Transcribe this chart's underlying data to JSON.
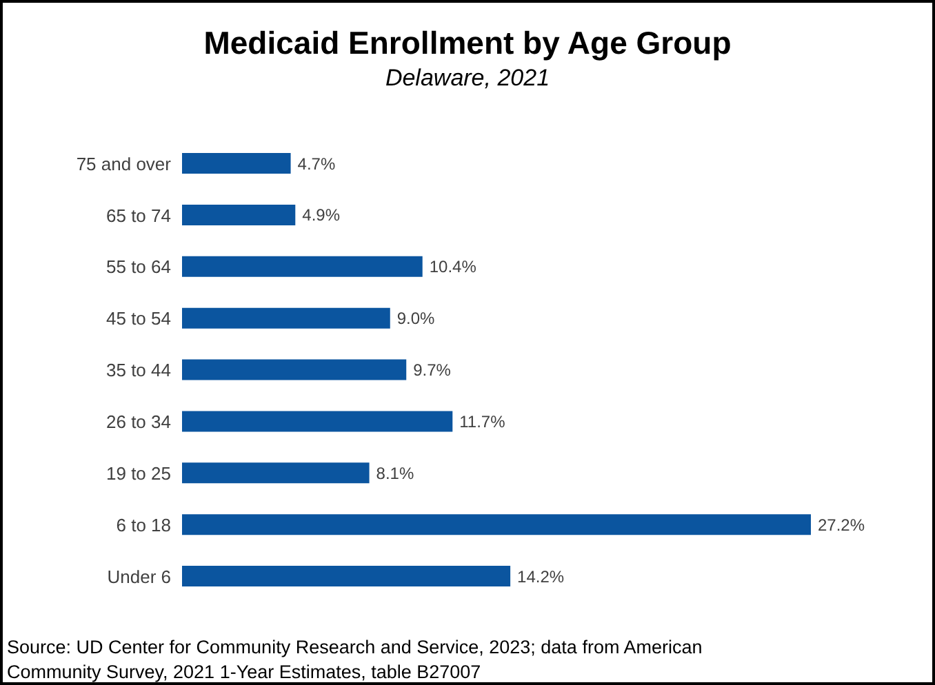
{
  "chart_data": {
    "type": "bar",
    "orientation": "horizontal",
    "title": "Medicaid Enrollment by Age Group",
    "subtitle": "Delaware, 2021",
    "categories": [
      "75 and over",
      "65 to 74",
      "55 to 64",
      "45 to 54",
      "35 to 44",
      "26 to 34",
      "19 to 25",
      "6 to 18",
      "Under 6"
    ],
    "values": [
      4.7,
      4.9,
      10.4,
      9.0,
      9.7,
      11.7,
      8.1,
      27.2,
      14.2
    ],
    "value_labels": [
      "4.7%",
      "4.9%",
      "10.4%",
      "9.0%",
      "9.7%",
      "11.7%",
      "8.1%",
      "27.2%",
      "14.2%"
    ],
    "color": "#0b559f",
    "grid": false,
    "legend": false,
    "tick_labels": "y",
    "annotations": [
      "Source: UD Center for Community Research and Service, 2023; data from American Community Survey, 2021 1-Year Estimates, table B27007"
    ]
  }
}
